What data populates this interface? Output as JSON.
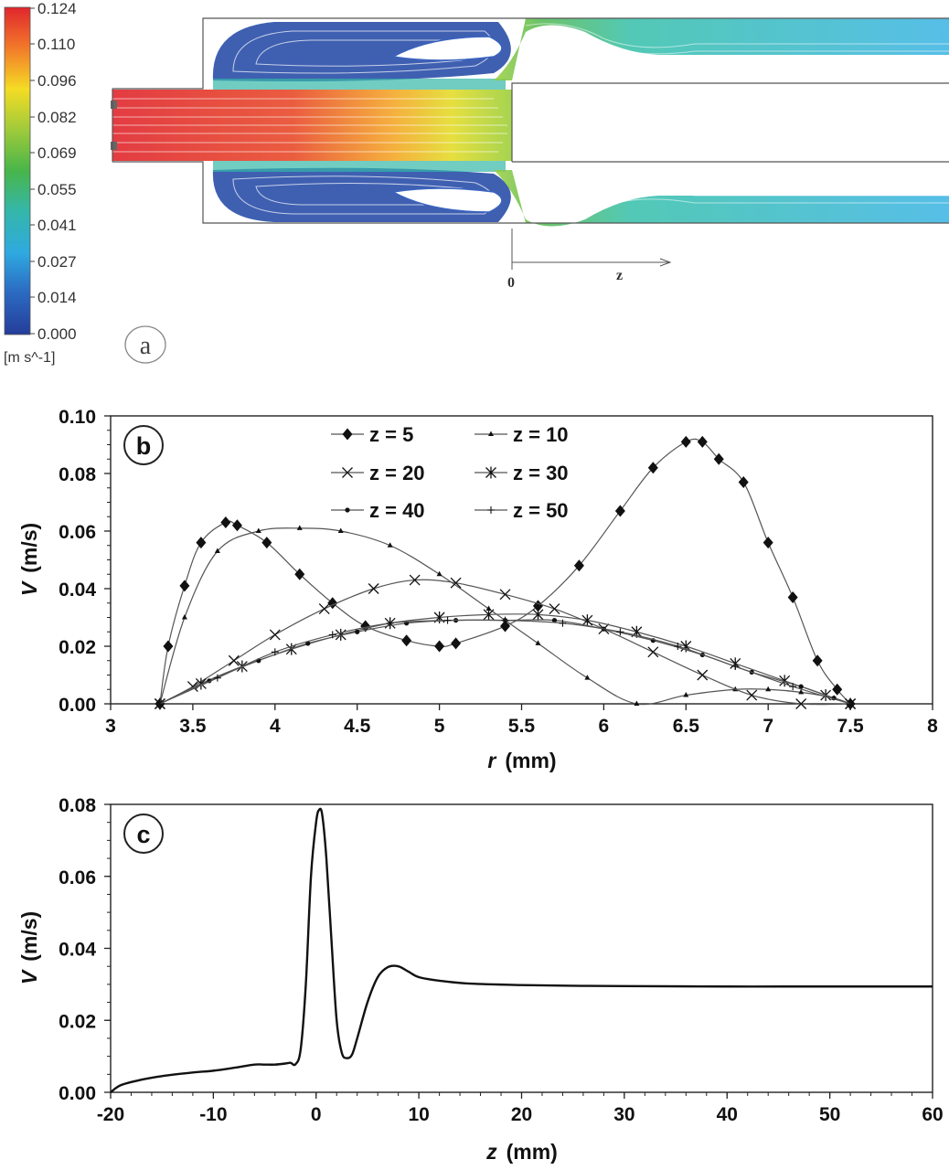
{
  "panel_a": {
    "label": "a",
    "colorbar": {
      "ticks": [
        "0.124",
        "0.110",
        "0.096",
        "0.082",
        "0.069",
        "0.055",
        "0.041",
        "0.027",
        "0.014",
        "0.000"
      ],
      "unit": "[m s^-1]",
      "colors": [
        "#e0262d",
        "#f2762a",
        "#f4dc24",
        "#a2cb3a",
        "#48b54a",
        "#35b7a8",
        "#2fa9e0",
        "#2b6bc2",
        "#253d9a"
      ]
    },
    "origin_label": "0",
    "axis_label": "z"
  },
  "chart_data": [
    {
      "type": "line",
      "panel_label": "b",
      "xlabel": "r",
      "xunit": "(mm)",
      "ylabel": "V",
      "yunit": "(m/s)",
      "xlim": [
        3,
        8
      ],
      "ylim": [
        0,
        0.1
      ],
      "xticks": [
        "3",
        "3.5",
        "4",
        "4.5",
        "5",
        "5.5",
        "6",
        "6.5",
        "7",
        "7.5",
        "8"
      ],
      "yticks": [
        "0.00",
        "0.02",
        "0.04",
        "0.06",
        "0.08",
        "0.10"
      ],
      "legend_position": "top-center",
      "series": [
        {
          "name": "z = 5",
          "marker": "diamond",
          "x": [
            3.3,
            3.35,
            3.45,
            3.55,
            3.7,
            3.77,
            3.95,
            4.15,
            4.35,
            4.55,
            4.8,
            5.0,
            5.1,
            5.4,
            5.6,
            5.85,
            6.1,
            6.3,
            6.5,
            6.6,
            6.7,
            6.85,
            7.0,
            7.15,
            7.3,
            7.42,
            7.5
          ],
          "y": [
            0.0,
            0.02,
            0.041,
            0.056,
            0.063,
            0.062,
            0.056,
            0.045,
            0.035,
            0.027,
            0.022,
            0.02,
            0.021,
            0.027,
            0.034,
            0.048,
            0.067,
            0.082,
            0.091,
            0.091,
            0.085,
            0.077,
            0.056,
            0.037,
            0.015,
            0.005,
            0.0
          ]
        },
        {
          "name": "z = 10",
          "marker": "triangle",
          "x": [
            3.3,
            3.45,
            3.65,
            3.9,
            4.15,
            4.4,
            4.7,
            5.0,
            5.3,
            5.6,
            5.9,
            6.2,
            6.5,
            6.8,
            7.0,
            7.2,
            7.4,
            7.5
          ],
          "y": [
            0.0,
            0.03,
            0.053,
            0.06,
            0.061,
            0.06,
            0.055,
            0.045,
            0.033,
            0.021,
            0.009,
            0.0,
            0.003,
            0.005,
            0.005,
            0.004,
            0.002,
            0.0
          ]
        },
        {
          "name": "z = 20",
          "marker": "x",
          "x": [
            3.3,
            3.5,
            3.75,
            4.0,
            4.3,
            4.6,
            4.85,
            5.1,
            5.4,
            5.7,
            6.0,
            6.3,
            6.6,
            6.9,
            7.2,
            7.5
          ],
          "y": [
            0.0,
            0.006,
            0.015,
            0.024,
            0.033,
            0.04,
            0.043,
            0.042,
            0.038,
            0.033,
            0.026,
            0.018,
            0.01,
            0.003,
            0.0,
            0.0
          ]
        },
        {
          "name": "z = 30",
          "marker": "asterisk",
          "x": [
            3.3,
            3.55,
            3.8,
            4.1,
            4.4,
            4.7,
            5.0,
            5.3,
            5.6,
            5.9,
            6.2,
            6.5,
            6.8,
            7.1,
            7.35,
            7.5
          ],
          "y": [
            0.0,
            0.007,
            0.013,
            0.019,
            0.024,
            0.028,
            0.03,
            0.031,
            0.031,
            0.029,
            0.025,
            0.02,
            0.014,
            0.008,
            0.003,
            0.0
          ]
        },
        {
          "name": "z = 40",
          "marker": "dot",
          "x": [
            3.3,
            3.6,
            3.9,
            4.2,
            4.5,
            4.8,
            5.1,
            5.4,
            5.7,
            6.0,
            6.3,
            6.6,
            6.9,
            7.2,
            7.4,
            7.5
          ],
          "y": [
            0.0,
            0.008,
            0.015,
            0.021,
            0.025,
            0.028,
            0.029,
            0.029,
            0.029,
            0.026,
            0.022,
            0.017,
            0.011,
            0.006,
            0.002,
            0.0
          ]
        },
        {
          "name": "z = 50",
          "marker": "plus",
          "x": [
            3.3,
            3.65,
            4.0,
            4.35,
            4.7,
            5.05,
            5.4,
            5.75,
            6.1,
            6.45,
            6.8,
            7.15,
            7.5
          ],
          "y": [
            0.0,
            0.009,
            0.018,
            0.024,
            0.028,
            0.029,
            0.029,
            0.028,
            0.025,
            0.02,
            0.013,
            0.006,
            0.0
          ]
        }
      ]
    },
    {
      "type": "line",
      "panel_label": "c",
      "xlabel": "z",
      "xunit": "(mm)",
      "ylabel": "V",
      "yunit": "(m/s)",
      "xlim": [
        -20,
        60
      ],
      "ylim": [
        0,
        0.08
      ],
      "xticks": [
        "-20",
        "-10",
        "0",
        "10",
        "20",
        "30",
        "40",
        "50",
        "60"
      ],
      "yticks": [
        "0.00",
        "0.02",
        "0.04",
        "0.06",
        "0.08"
      ],
      "series": [
        {
          "name": "V",
          "x": [
            -20,
            -19,
            -17,
            -15,
            -12,
            -10,
            -8,
            -6,
            -5,
            -4,
            -3,
            -2.5,
            -2,
            -1.5,
            -1,
            -0.5,
            0,
            0.3,
            0.6,
            1,
            1.5,
            2,
            2.5,
            3,
            3.5,
            4,
            5,
            6,
            7,
            8,
            9,
            10,
            12,
            15,
            20,
            25,
            30,
            40,
            50,
            60
          ],
          "y": [
            0.0,
            0.002,
            0.0035,
            0.0045,
            0.0055,
            0.006,
            0.0068,
            0.0077,
            0.0077,
            0.0077,
            0.008,
            0.0082,
            0.0078,
            0.012,
            0.03,
            0.06,
            0.075,
            0.0785,
            0.077,
            0.065,
            0.042,
            0.02,
            0.011,
            0.0095,
            0.0105,
            0.015,
            0.025,
            0.032,
            0.0348,
            0.035,
            0.0335,
            0.032,
            0.031,
            0.0302,
            0.0298,
            0.0296,
            0.0295,
            0.0294,
            0.0294,
            0.0294
          ]
        }
      ]
    }
  ]
}
